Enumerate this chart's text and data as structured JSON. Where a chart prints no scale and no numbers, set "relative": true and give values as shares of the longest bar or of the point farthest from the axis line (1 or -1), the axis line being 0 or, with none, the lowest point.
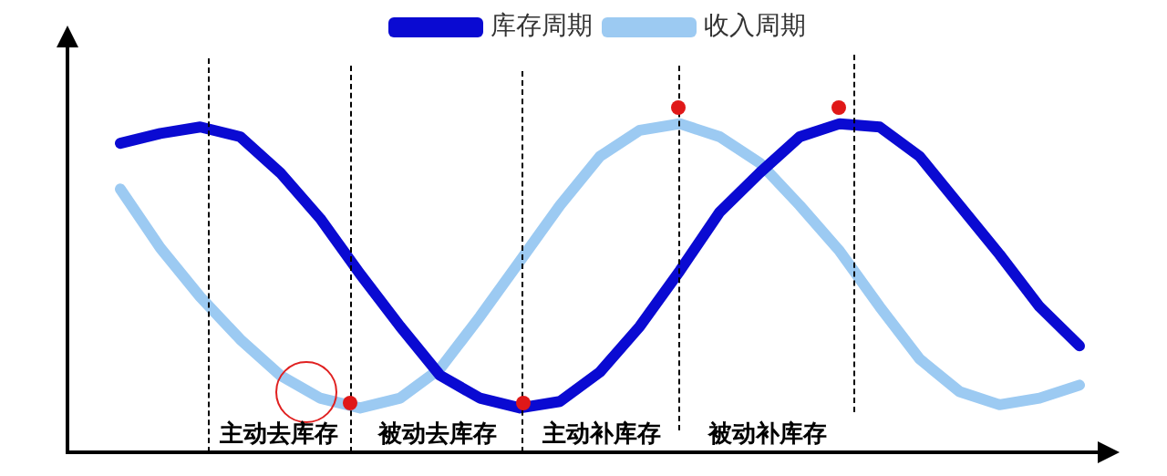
{
  "chart_data": {
    "type": "line",
    "relative": true,
    "legend": "top",
    "marker": "none",
    "line_style": "solid",
    "categories": [
      null,
      null,
      null,
      null,
      null,
      null,
      null,
      null,
      null,
      null,
      null,
      null,
      null,
      null,
      null,
      null,
      null,
      null,
      null,
      null,
      null,
      null,
      null,
      null,
      null
    ],
    "series": [
      {
        "name": "库存周期",
        "color": "#0a0ad2",
        "values": [
          0.94,
          0.97,
          0.99,
          0.96,
          0.85,
          0.71,
          0.54,
          0.38,
          0.23,
          0.16,
          0.13,
          0.15,
          0.24,
          0.38,
          0.55,
          0.73,
          0.85,
          0.96,
          1.0,
          0.99,
          0.9,
          0.75,
          0.6,
          0.44,
          0.32
        ]
      },
      {
        "name": "收入周期",
        "color": "#9ccaf2",
        "values": [
          0.8,
          0.62,
          0.47,
          0.34,
          0.23,
          0.16,
          0.13,
          0.16,
          0.25,
          0.41,
          0.58,
          0.75,
          0.9,
          0.98,
          1.0,
          0.96,
          0.88,
          0.75,
          0.61,
          0.44,
          0.28,
          0.18,
          0.14,
          0.16,
          0.2
        ]
      }
    ],
    "annotations": [
      "主动去库存",
      "被动去库存",
      "主动补库存",
      "被动补库存"
    ]
  }
}
